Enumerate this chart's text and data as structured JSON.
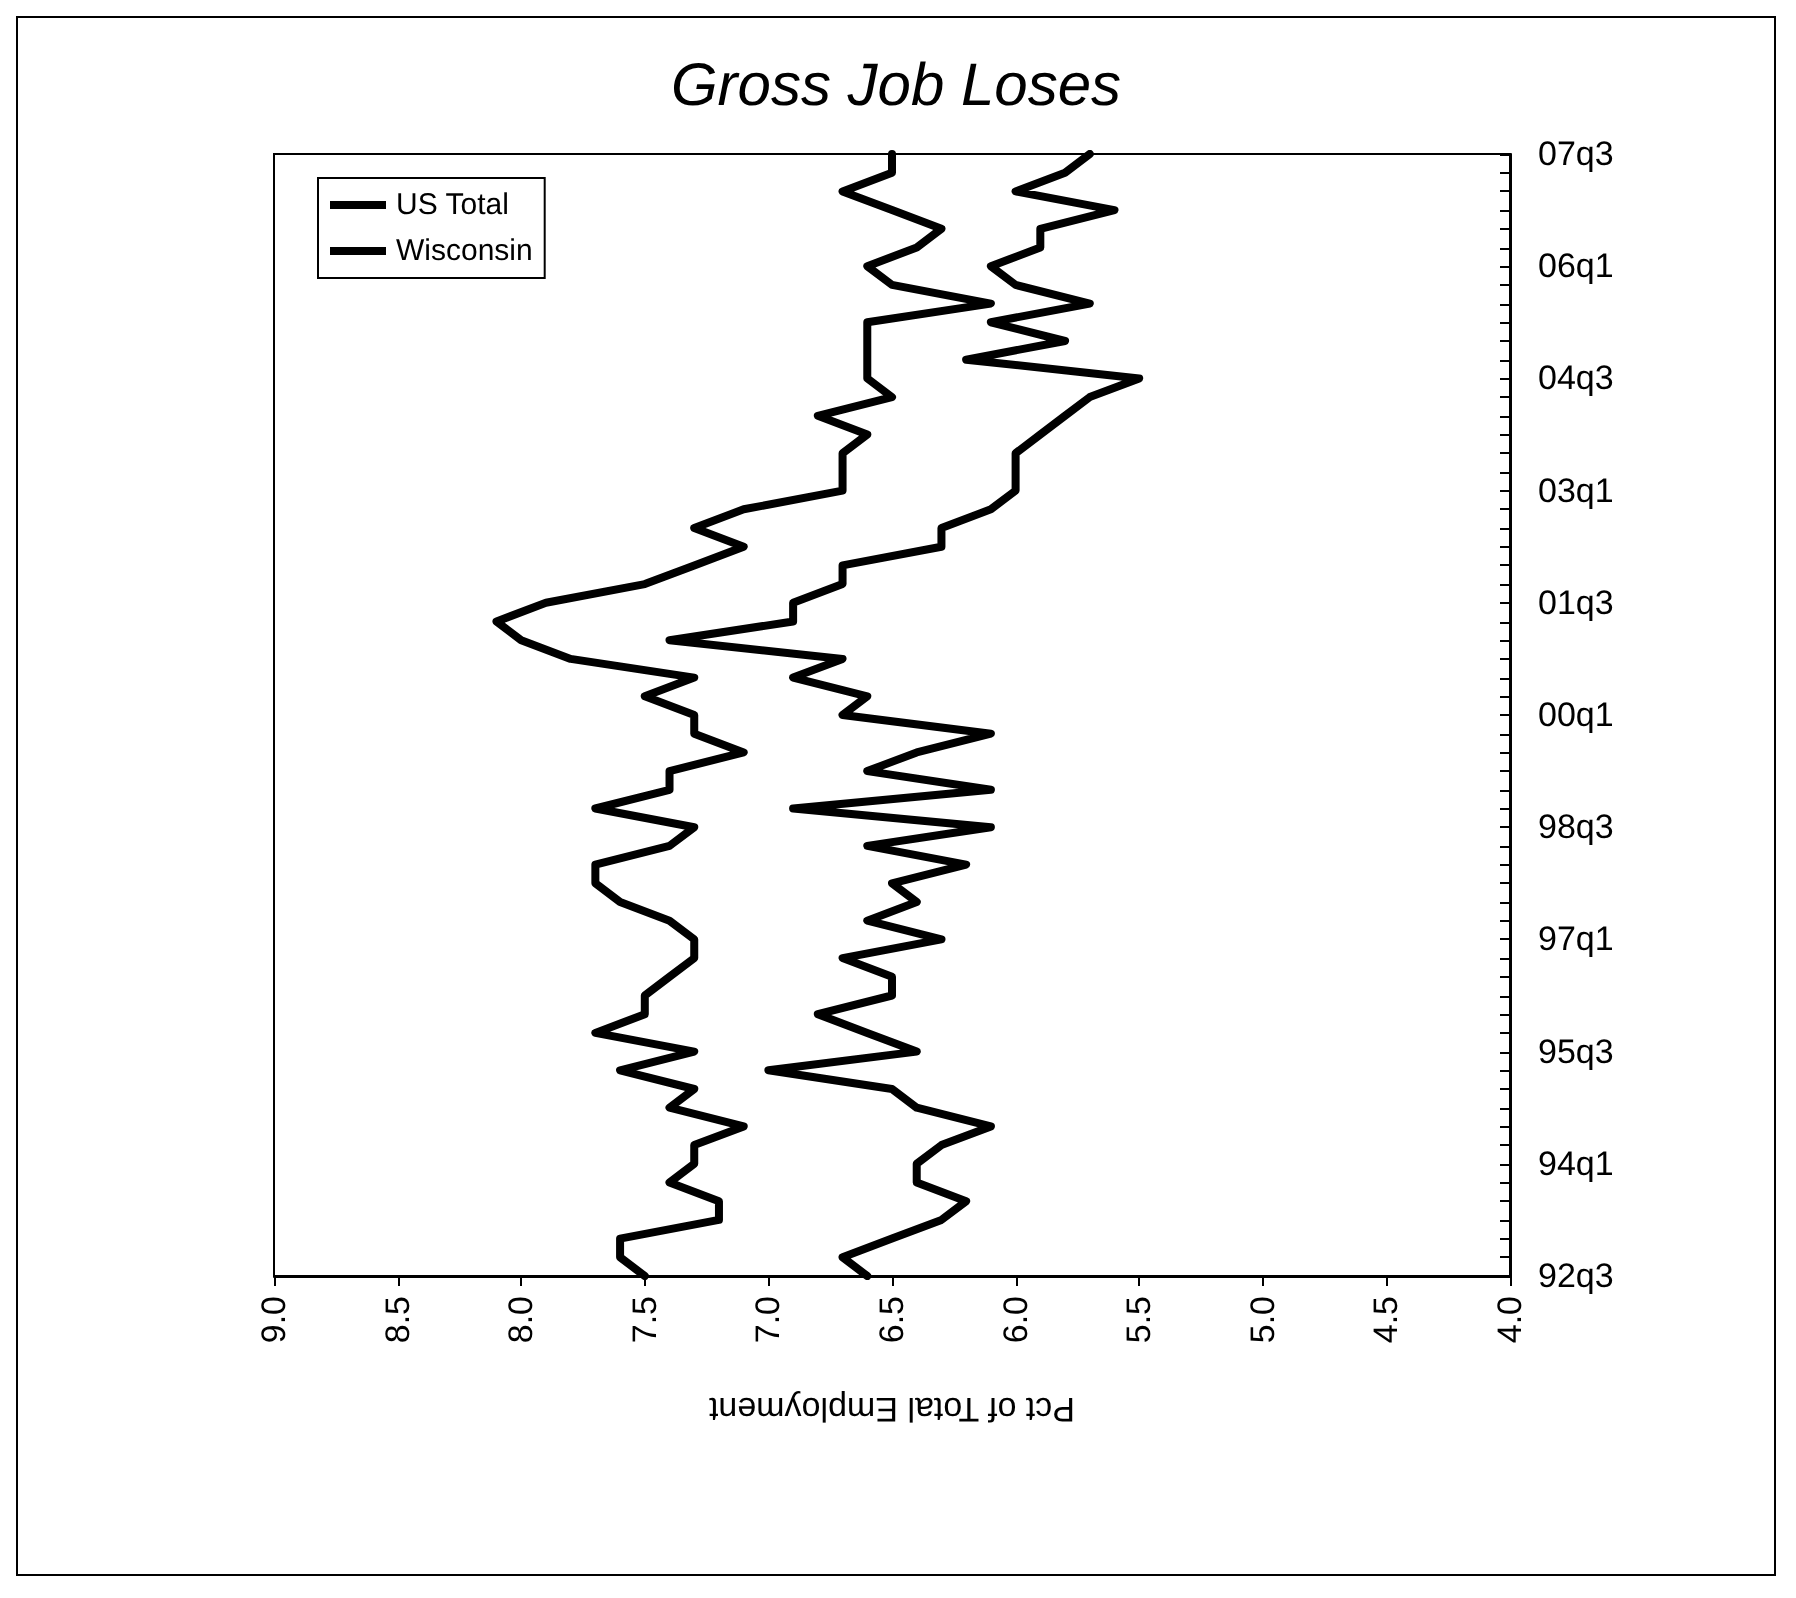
{
  "chart_data": {
    "type": "line",
    "title": "Gross Job Loses",
    "xlabel": "Pct of Total Employment",
    "orientation": "horizontal",
    "categories": [
      "07q3",
      null,
      null,
      null,
      null,
      null,
      "06q1",
      null,
      null,
      null,
      null,
      null,
      "04q3",
      null,
      null,
      null,
      null,
      null,
      "03q1",
      null,
      null,
      null,
      null,
      null,
      "01q3",
      null,
      null,
      null,
      null,
      null,
      "00q1",
      null,
      null,
      null,
      null,
      null,
      "98q3",
      null,
      null,
      null,
      null,
      null,
      "97q1",
      null,
      null,
      null,
      null,
      null,
      "95q3",
      null,
      null,
      null,
      null,
      null,
      "94q1",
      null,
      null,
      null,
      null,
      null,
      "92q3"
    ],
    "series": [
      {
        "name": "US Total",
        "color": "#000000",
        "values": [
          6.5,
          6.5,
          6.7,
          6.5,
          6.3,
          6.4,
          6.6,
          6.5,
          6.1,
          6.6,
          6.6,
          6.6,
          6.6,
          6.5,
          6.8,
          6.6,
          6.7,
          6.7,
          6.7,
          7.1,
          7.3,
          7.1,
          7.3,
          7.5,
          7.9,
          8.1,
          8.0,
          7.8,
          7.3,
          7.5,
          7.3,
          7.3,
          7.1,
          7.4,
          7.4,
          7.7,
          7.3,
          7.4,
          7.7,
          7.7,
          7.6,
          7.4,
          7.3,
          7.3,
          7.4,
          7.5,
          7.5,
          7.7,
          7.3,
          7.6,
          7.3,
          7.4,
          7.1,
          7.3,
          7.3,
          7.4,
          7.2,
          7.2,
          7.6,
          7.6,
          7.5
        ]
      },
      {
        "name": "Wisconsin",
        "color": "#000000",
        "values": [
          5.7,
          5.8,
          6.0,
          5.6,
          5.9,
          5.9,
          6.1,
          6.0,
          5.7,
          6.1,
          5.8,
          6.2,
          5.5,
          5.7,
          5.8,
          5.9,
          6.0,
          6.0,
          6.0,
          6.1,
          6.3,
          6.3,
          6.7,
          6.7,
          6.9,
          6.9,
          7.4,
          6.7,
          6.9,
          6.6,
          6.7,
          6.1,
          6.4,
          6.6,
          6.1,
          6.9,
          6.1,
          6.6,
          6.2,
          6.5,
          6.4,
          6.6,
          6.3,
          6.7,
          6.5,
          6.5,
          6.8,
          6.6,
          6.4,
          7.0,
          6.5,
          6.4,
          6.1,
          6.3,
          6.4,
          6.4,
          6.2,
          6.3,
          6.5,
          6.7,
          6.6
        ]
      }
    ],
    "xlim": [
      9.0,
      4.0
    ],
    "xticks": [
      {
        "value": 9,
        "label": "9.0"
      },
      8.5,
      {
        "value": 8,
        "label": "8.0"
      },
      7.5,
      {
        "value": 7,
        "label": "7.0"
      },
      6.5,
      {
        "value": 6,
        "label": "6.0"
      },
      5.5,
      {
        "value": 5,
        "label": "5.0"
      },
      4.5,
      {
        "value": 4,
        "label": "4.0"
      }
    ],
    "grid": false,
    "legend": "top left",
    "marker": "none",
    "line_style": "solid"
  }
}
